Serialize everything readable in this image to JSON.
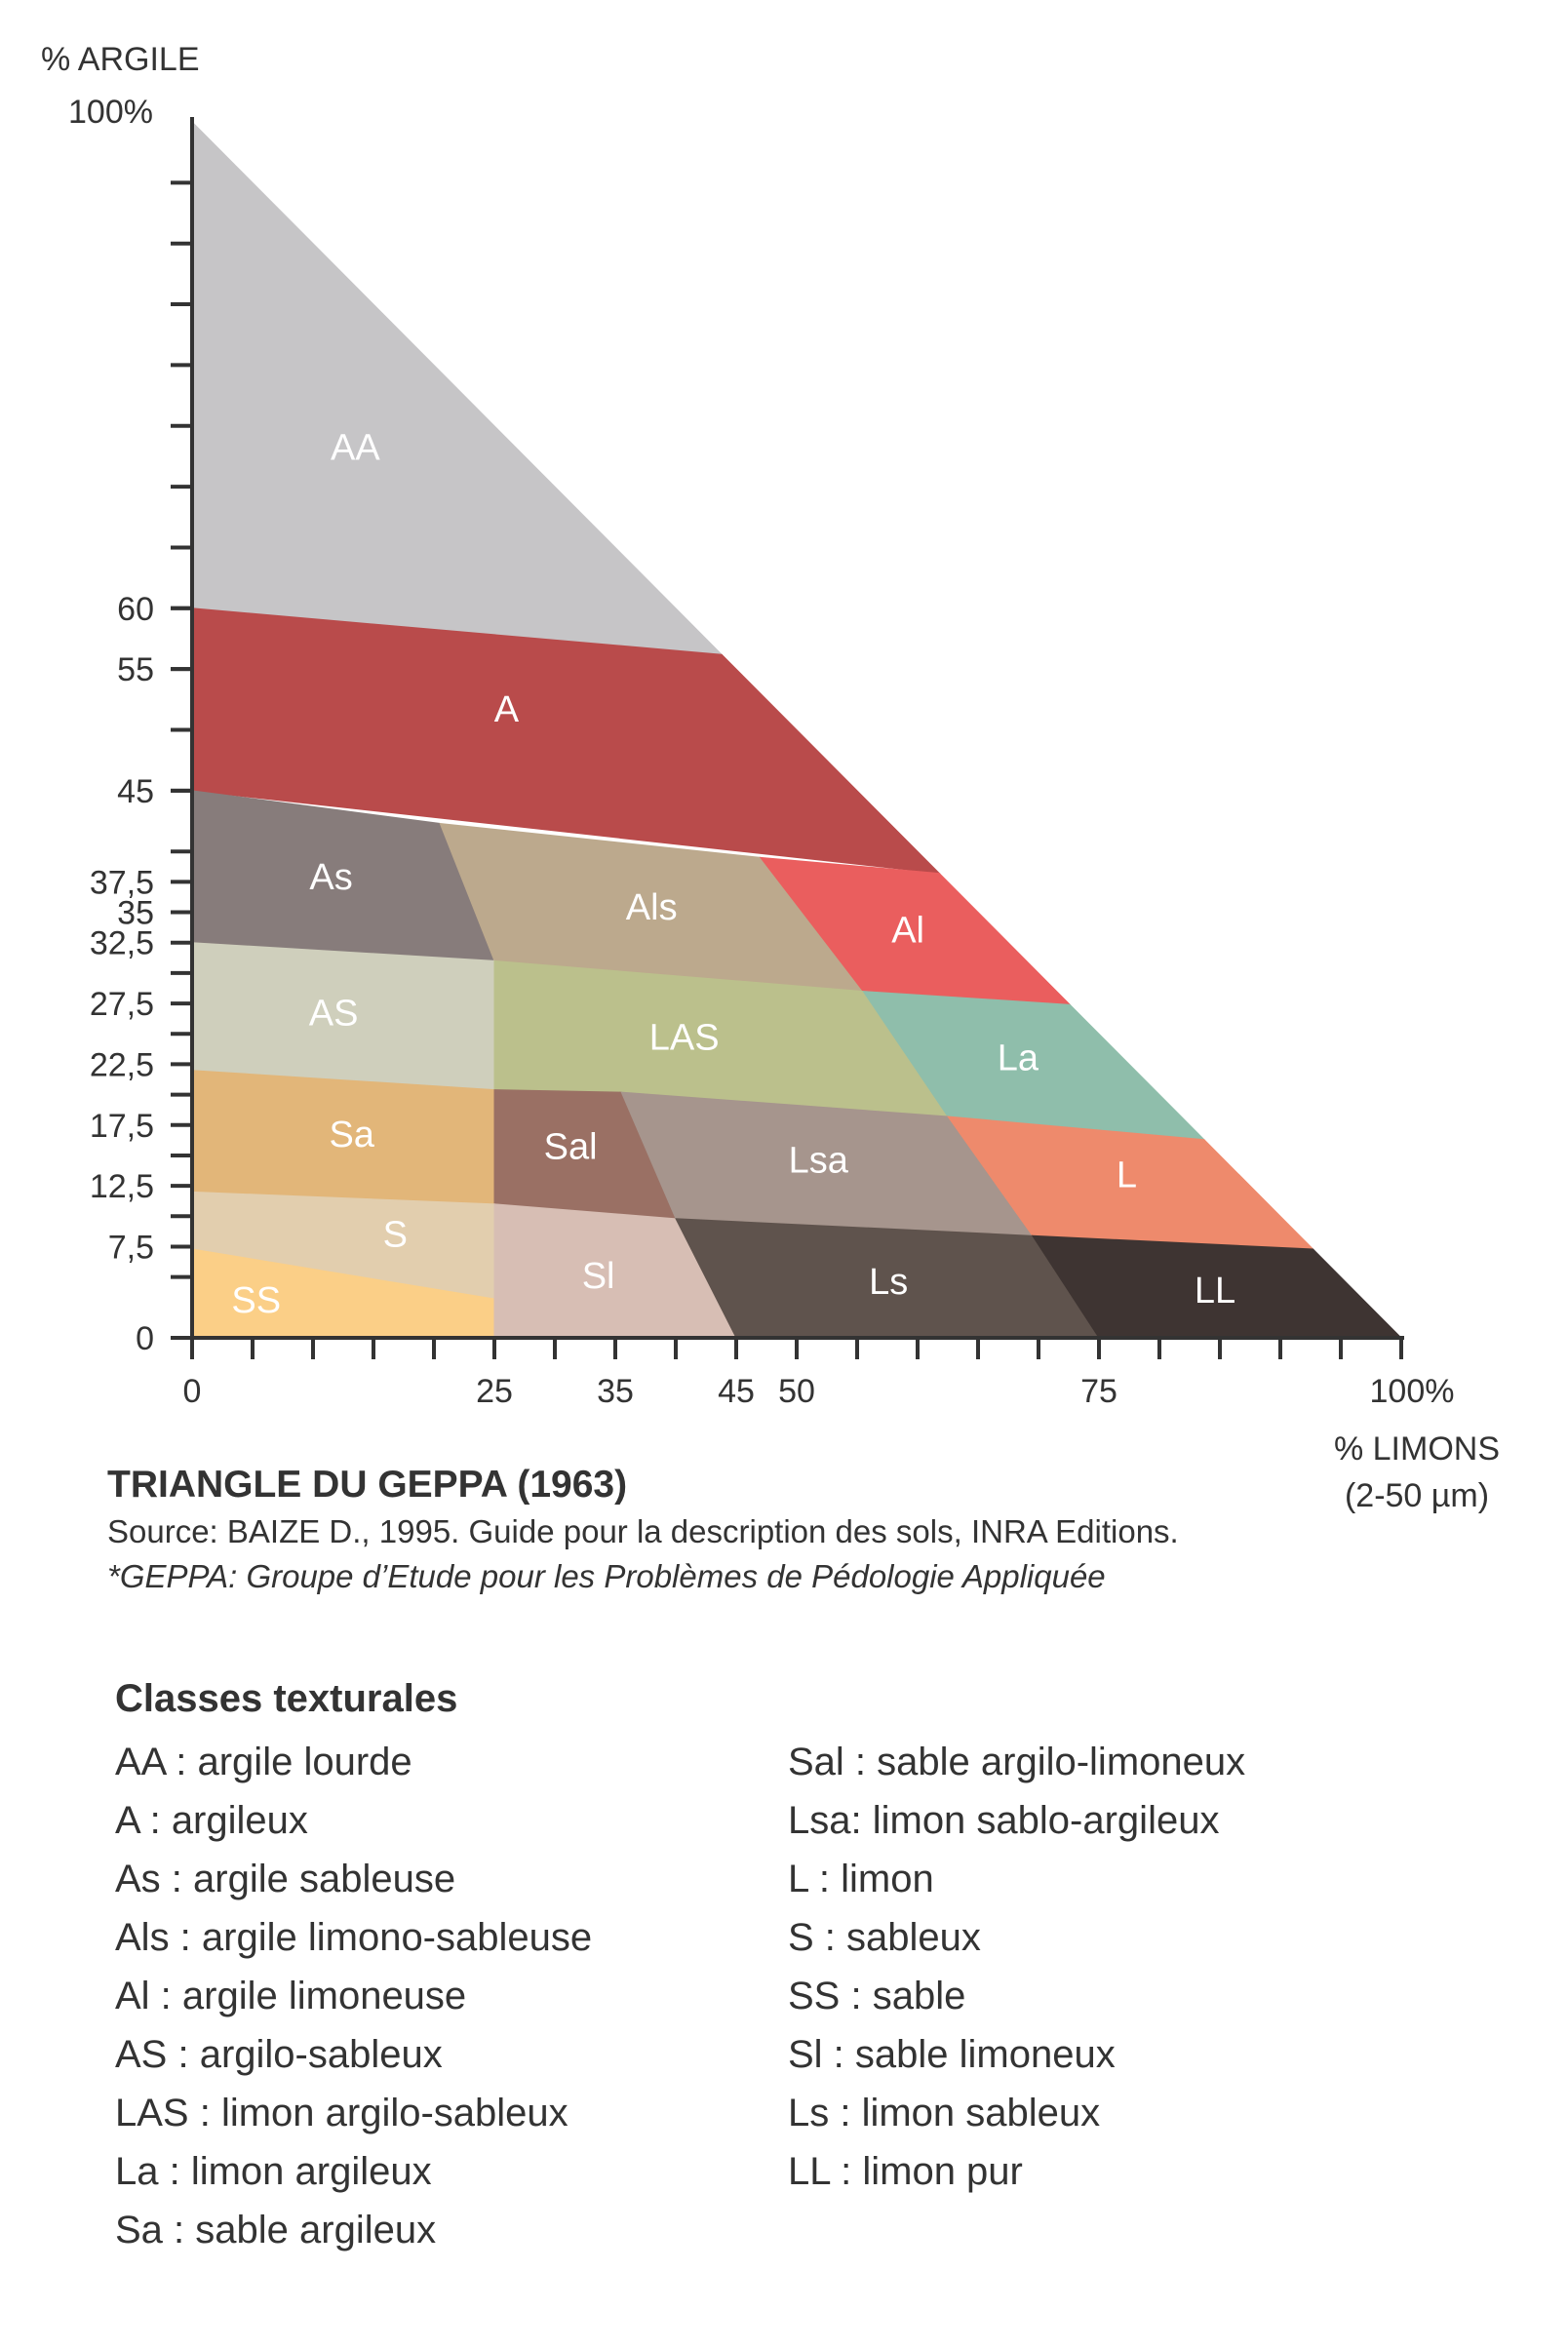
{
  "y_axis": {
    "title": "% ARGILE",
    "top_label": "100%",
    "tick_labels": [
      {
        "text": "60",
        "value": 60
      },
      {
        "text": "55",
        "value": 55
      },
      {
        "text": "45",
        "value": 45
      },
      {
        "text": "37,5",
        "value": 37.5
      },
      {
        "text": "35",
        "value": 35
      },
      {
        "text": "32,5",
        "value": 32.5
      },
      {
        "text": "27,5",
        "value": 27.5
      },
      {
        "text": "22,5",
        "value": 22.5
      },
      {
        "text": "17,5",
        "value": 17.5
      },
      {
        "text": "12,5",
        "value": 12.5
      },
      {
        "text": "7,5",
        "value": 7.5
      },
      {
        "text": "0",
        "value": 0
      }
    ]
  },
  "x_axis": {
    "title_line1": "% LIMONS",
    "title_line2": "(2-50 µm)",
    "end_label": "100%",
    "tick_labels": [
      {
        "text": "0",
        "value": 0
      },
      {
        "text": "25",
        "value": 25
      },
      {
        "text": "35",
        "value": 35
      },
      {
        "text": "45",
        "value": 45
      },
      {
        "text": "50",
        "value": 50
      },
      {
        "text": "75",
        "value": 75
      }
    ]
  },
  "zones": [
    {
      "code": "AA",
      "color": "#c6c5c7",
      "text_color": "#ffffff",
      "points": [
        [
          0,
          100
        ],
        [
          0,
          60
        ],
        [
          43.8,
          56.2
        ]
      ],
      "label_at": [
        13.5,
        73
      ]
    },
    {
      "code": "A",
      "color": "#b94b4b",
      "text_color": "#ffffff",
      "points": [
        [
          0,
          60
        ],
        [
          43.8,
          56.2
        ],
        [
          61.8,
          38.2
        ],
        [
          0,
          45
        ]
      ],
      "label_at": [
        26,
        51.5
      ]
    },
    {
      "code": "As",
      "color": "#877c7b",
      "text_color": "#ffffff",
      "points": [
        [
          0,
          45
        ],
        [
          20.5,
          42.3
        ],
        [
          25,
          31
        ],
        [
          0,
          32.5
        ]
      ],
      "label_at": [
        11.5,
        37.7
      ]
    },
    {
      "code": "Als",
      "color": "#bca98d",
      "text_color": "#ffffff",
      "points": [
        [
          20.5,
          42.3
        ],
        [
          47,
          39.5
        ],
        [
          55.5,
          28.5
        ],
        [
          25,
          31
        ]
      ],
      "label_at": [
        38,
        35.2
      ]
    },
    {
      "code": "Al",
      "color": "#ea5e5e",
      "text_color": "#ffffff",
      "points": [
        [
          47,
          39.5
        ],
        [
          61.8,
          38.2
        ],
        [
          72.6,
          27.4
        ],
        [
          55.5,
          28.5
        ]
      ],
      "label_at": [
        59.2,
        33.3
      ]
    },
    {
      "code": "AS",
      "color": "#cfcfbc",
      "text_color": "#ffffff",
      "points": [
        [
          0,
          32.5
        ],
        [
          25,
          31
        ],
        [
          25,
          20.4
        ],
        [
          0,
          22
        ]
      ],
      "label_at": [
        11.7,
        26.5
      ]
    },
    {
      "code": "LAS",
      "color": "#bbc08c",
      "text_color": "#ffffff",
      "points": [
        [
          25,
          31
        ],
        [
          55.5,
          28.5
        ],
        [
          62.5,
          18.2
        ],
        [
          25,
          20.4
        ]
      ],
      "label_at": [
        40.7,
        24.5
      ]
    },
    {
      "code": "La",
      "color": "#8fbeab",
      "text_color": "#ffffff",
      "points": [
        [
          55.5,
          28.5
        ],
        [
          72.6,
          27.4
        ],
        [
          83.7,
          16.3
        ],
        [
          62.5,
          18.2
        ]
      ],
      "label_at": [
        68.3,
        22.8
      ]
    },
    {
      "code": "Sa",
      "color": "#e2b679",
      "text_color": "#ffffff",
      "points": [
        [
          0,
          22
        ],
        [
          25,
          20.4
        ],
        [
          25,
          11
        ],
        [
          0,
          12
        ]
      ],
      "label_at": [
        13.2,
        16.5
      ]
    },
    {
      "code": "Sal",
      "color": "#9a7064",
      "text_color": "#ffffff",
      "points": [
        [
          25,
          20.4
        ],
        [
          35.5,
          20.2
        ],
        [
          40,
          9.8
        ],
        [
          25,
          11
        ]
      ],
      "label_at": [
        31.3,
        15.5
      ]
    },
    {
      "code": "Lsa",
      "color": "#a6958d",
      "text_color": "#ffffff",
      "points": [
        [
          35.5,
          20.2
        ],
        [
          62.5,
          18.2
        ],
        [
          69.5,
          8.4
        ],
        [
          40,
          9.8
        ]
      ],
      "label_at": [
        51.8,
        14.4
      ]
    },
    {
      "code": "L",
      "color": "#ee8a6c",
      "text_color": "#ffffff",
      "points": [
        [
          62.5,
          18.2
        ],
        [
          83.7,
          16.3
        ],
        [
          92.7,
          7.3
        ],
        [
          69.5,
          8.4
        ]
      ],
      "label_at": [
        77.3,
        13.2
      ]
    },
    {
      "code": "S",
      "color": "#e2ceae",
      "text_color": "#ffffff",
      "points": [
        [
          0,
          12
        ],
        [
          25,
          11
        ],
        [
          25,
          3.2
        ],
        [
          0,
          7.3
        ]
      ],
      "label_at": [
        16.8,
        8.3
      ]
    },
    {
      "code": "SS",
      "color": "#fbcf87",
      "text_color": "#ffffff",
      "points": [
        [
          0,
          7.3
        ],
        [
          25,
          3.2
        ],
        [
          25,
          0
        ],
        [
          0,
          0
        ]
      ],
      "label_at": [
        5.3,
        2.9
      ]
    },
    {
      "code": "Sl",
      "color": "#d7beb4",
      "text_color": "#ffffff",
      "points": [
        [
          25,
          11
        ],
        [
          40,
          9.8
        ],
        [
          45,
          0
        ],
        [
          25,
          0
        ]
      ],
      "label_at": [
        33.6,
        4.9
      ]
    },
    {
      "code": "Ls",
      "color": "#5f534d",
      "text_color": "#ffffff",
      "points": [
        [
          40,
          9.8
        ],
        [
          69.5,
          8.4
        ],
        [
          75,
          0
        ],
        [
          45,
          0
        ]
      ],
      "label_at": [
        57.6,
        4.4
      ]
    },
    {
      "code": "LL",
      "color": "#3e3432",
      "text_color": "#ffffff",
      "points": [
        [
          69.5,
          8.4
        ],
        [
          92.7,
          7.3
        ],
        [
          100,
          0
        ],
        [
          75,
          0
        ]
      ],
      "label_at": [
        84.6,
        3.7
      ]
    }
  ],
  "caption": {
    "title": "TRIANGLE DU GEPPA (1963)",
    "source": "Source: BAIZE D., 1995. Guide pour la description des sols, INRA Editions.",
    "note": "*GEPPA: Groupe d’Etude pour les Problèmes de Pédologie Appliquée"
  },
  "legend": {
    "title": "Classes texturales",
    "left": [
      "AA : argile lourde",
      "A : argileux",
      "As : argile sableuse",
      "Als : argile limono-sableuse",
      "Al : argile limoneuse",
      "AS : argilo-sableux",
      "LAS : limon argilo-sableux",
      "La : limon argileux",
      "Sa : sable argileux"
    ],
    "right": [
      "Sal : sable argilo-limoneux",
      "Lsa: limon sablo-argileux",
      "L : limon",
      "S : sableux",
      "SS : sable",
      "Sl : sable limoneux",
      "Ls : limon sableux",
      "LL : limon pur"
    ]
  },
  "colors": {
    "axis": "#333333",
    "text": "#333333"
  }
}
